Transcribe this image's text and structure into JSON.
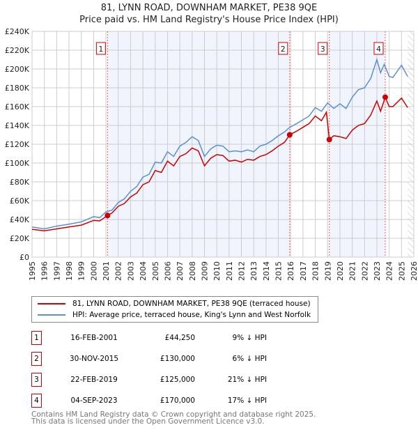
{
  "chart_data": {
    "type": "line",
    "title": "81, LYNN ROAD, DOWNHAM MARKET, PE38 9QE",
    "subtitle": "Price paid vs. HM Land Registry's House Price Index (HPI)",
    "xlim": [
      1995,
      2026
    ],
    "ylim": [
      0,
      240000
    ],
    "x_ticks": [
      "1995",
      "1996",
      "1997",
      "1998",
      "1999",
      "2000",
      "2001",
      "2002",
      "2003",
      "2004",
      "2005",
      "2006",
      "2007",
      "2008",
      "2009",
      "2010",
      "2011",
      "2012",
      "2013",
      "2014",
      "2015",
      "2016",
      "2017",
      "2018",
      "2019",
      "2020",
      "2021",
      "2022",
      "2023",
      "2024",
      "2025",
      "2026"
    ],
    "y_ticks": [
      "£0",
      "£20K",
      "£40K",
      "£60K",
      "£80K",
      "£100K",
      "£120K",
      "£140K",
      "£160K",
      "£180K",
      "£200K",
      "£220K",
      "£240K"
    ],
    "grid": true,
    "series": [
      {
        "name": "81, LYNN ROAD, DOWNHAM MARKET, PE38 9QE (terraced house)",
        "color": "#cc0000",
        "x": [
          1995,
          1996,
          1997,
          1998,
          1999,
          2000,
          2000.5,
          2001.13,
          2001.5,
          2002,
          2002.5,
          2003,
          2003.5,
          2004,
          2004.5,
          2005,
          2005.5,
          2006,
          2006.5,
          2007,
          2007.5,
          2008,
          2008.5,
          2009,
          2009.5,
          2010,
          2010.5,
          2011,
          2011.5,
          2012,
          2012.5,
          2013,
          2013.5,
          2014,
          2014.5,
          2015,
          2015.5,
          2015.92,
          2016.5,
          2017,
          2017.5,
          2018,
          2018.5,
          2018.9,
          2019.14,
          2019.5,
          2020,
          2020.5,
          2021,
          2021.5,
          2022,
          2022.5,
          2023,
          2023.3,
          2023.68,
          2024,
          2024.3,
          2025,
          2025.5
        ],
        "y": [
          29500,
          28000,
          30000,
          32000,
          34000,
          39000,
          38500,
          44250,
          47000,
          54000,
          57000,
          64000,
          68000,
          77000,
          80000,
          92000,
          90000,
          102000,
          97000,
          107000,
          110000,
          116000,
          113000,
          97000,
          105000,
          109000,
          108000,
          102000,
          103000,
          101000,
          104000,
          103000,
          107000,
          109000,
          113000,
          118000,
          122000,
          130000,
          134000,
          138000,
          142000,
          150000,
          145000,
          154000,
          125000,
          129000,
          128000,
          126000,
          135000,
          140000,
          142000,
          151000,
          166000,
          155000,
          170000,
          160000,
          160000,
          169000,
          159000
        ]
      },
      {
        "name": "HPI: Average price, terraced house, King's Lynn and West Norfolk",
        "color": "#5b8fd4",
        "x": [
          1995,
          1996,
          1997,
          1998,
          1999,
          2000,
          2000.5,
          2001,
          2001.5,
          2002,
          2002.5,
          2003,
          2003.5,
          2004,
          2004.5,
          2005,
          2005.5,
          2006,
          2006.5,
          2007,
          2007.5,
          2008,
          2008.5,
          2009,
          2009.5,
          2010,
          2010.5,
          2011,
          2011.5,
          2012,
          2012.5,
          2013,
          2013.5,
          2014,
          2014.5,
          2015,
          2015.5,
          2015.92,
          2016.5,
          2017,
          2017.5,
          2018,
          2018.5,
          2019,
          2019.5,
          2020,
          2020.5,
          2021,
          2021.5,
          2022,
          2022.5,
          2023,
          2023.3,
          2023.6,
          2024,
          2024.3,
          2025,
          2025.5
        ],
        "y": [
          32000,
          30000,
          33000,
          35000,
          37500,
          43000,
          42000,
          48000,
          50000,
          58000,
          62000,
          70000,
          75000,
          85000,
          88000,
          101000,
          100000,
          112000,
          107000,
          118000,
          122000,
          128000,
          124000,
          107000,
          115000,
          119000,
          118000,
          112000,
          113000,
          112000,
          114000,
          112000,
          118000,
          120000,
          124000,
          129000,
          133000,
          138000,
          142000,
          146000,
          150000,
          159000,
          155000,
          164000,
          158000,
          163000,
          158000,
          170000,
          178000,
          180000,
          190000,
          210000,
          196000,
          205000,
          192000,
          191000,
          204000,
          192000
        ]
      }
    ],
    "sales": [
      {
        "n": "1",
        "x": 2001.13,
        "y": 44250
      },
      {
        "n": "2",
        "x": 2015.92,
        "y": 130000
      },
      {
        "n": "3",
        "x": 2019.14,
        "y": 125000
      },
      {
        "n": "4",
        "x": 2023.68,
        "y": 170000
      }
    ],
    "hatch_from": 2025.5
  },
  "legend": {
    "red": "81, LYNN ROAD, DOWNHAM MARKET, PE38 9QE (terraced house)",
    "blue": "HPI: Average price, terraced house, King's Lynn and West Norfolk"
  },
  "table": [
    {
      "n": "1",
      "date": "16-FEB-2001",
      "price": "£44,250",
      "hpi": "9% ↓ HPI"
    },
    {
      "n": "2",
      "date": "30-NOV-2015",
      "price": "£130,000",
      "hpi": "6% ↓ HPI"
    },
    {
      "n": "3",
      "date": "22-FEB-2019",
      "price": "£125,000",
      "hpi": "21% ↓ HPI"
    },
    {
      "n": "4",
      "date": "04-SEP-2023",
      "price": "£170,000",
      "hpi": "17% ↓ HPI"
    }
  ],
  "footer": {
    "line1": "Contains HM Land Registry data © Crown copyright and database right 2025.",
    "line2": "This data is licensed under the Open Government Licence v3.0."
  }
}
